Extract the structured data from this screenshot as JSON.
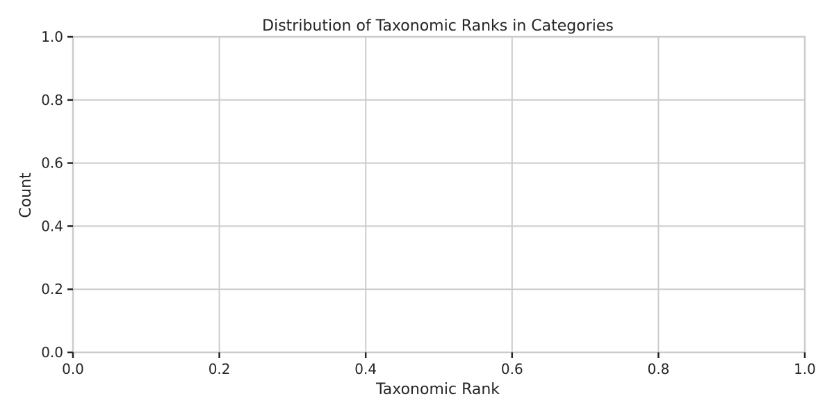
{
  "chart_data": {
    "type": "bar",
    "title": "Distribution of Taxonomic Ranks in Categories",
    "xlabel": "Taxonomic Rank",
    "ylabel": "Count",
    "categories": [],
    "values": [],
    "xlim": [
      0,
      1
    ],
    "ylim": [
      0,
      1
    ],
    "xticks": [
      "0.0",
      "0.2",
      "0.4",
      "0.6",
      "0.8",
      "1.0"
    ],
    "yticks": [
      "0.0",
      "0.2",
      "0.4",
      "0.6",
      "0.8",
      "1.0"
    ],
    "grid": true,
    "legend": "none",
    "colors": {
      "grid": "#cccccc",
      "spine": "#cccccc",
      "tick": "#262626",
      "text": "#262626"
    }
  }
}
